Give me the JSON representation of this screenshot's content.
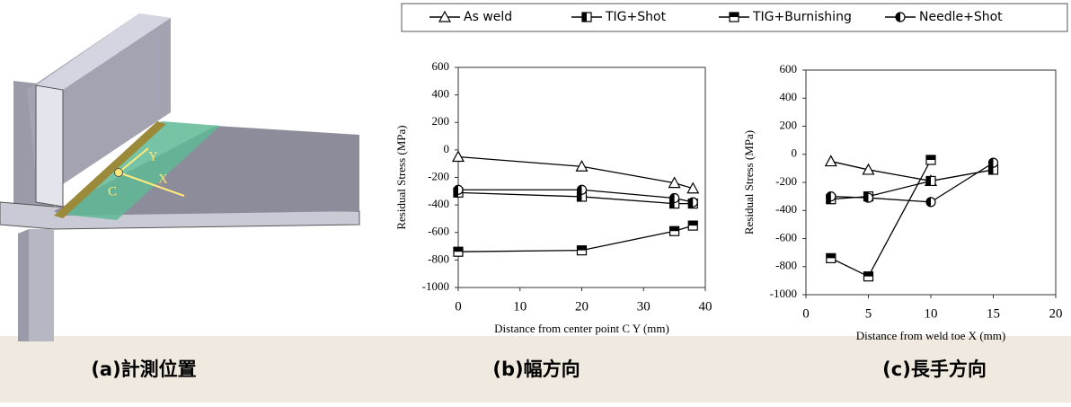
{
  "illustration": {
    "labels": [
      "Y",
      "X",
      "C"
    ]
  },
  "captions": [
    "(a)計測位置",
    "(b)幅方向",
    "(c)長手方向"
  ],
  "legend": [
    {
      "name": "As weld",
      "marker": "triangle",
      "color": "#000000"
    },
    {
      "name": "TIG+Shot",
      "marker": "square-left",
      "color": "#000000"
    },
    {
      "name": "TIG+Burnishing",
      "marker": "square-top",
      "color": "#000000"
    },
    {
      "name": "Needle+Shot",
      "marker": "circle-left",
      "color": "#000000"
    }
  ],
  "chart_data": [
    {
      "type": "line",
      "xlabel": "Distance from center point C   Y (mm)",
      "ylabel": "Residual Stress  (MPa)",
      "x": [
        0,
        20,
        35,
        38
      ],
      "xlim": [
        0,
        40
      ],
      "xticks": [
        0,
        10,
        20,
        30,
        40
      ],
      "ylim": [
        -1000,
        600
      ],
      "yticks": [
        -1000,
        -800,
        -600,
        -400,
        -200,
        0,
        200,
        400,
        600
      ],
      "series": [
        {
          "values": [
            -50,
            -120,
            -240,
            -280
          ]
        },
        {
          "values": [
            -310,
            -340,
            -390,
            -390
          ]
        },
        {
          "values": [
            -740,
            -730,
            -590,
            -550
          ]
        },
        {
          "values": [
            -290,
            -290,
            -350,
            -380
          ]
        }
      ]
    },
    {
      "type": "line",
      "xlabel": "Distance from weld toe    X (mm)",
      "ylabel": "Residual Stress  (MPa)",
      "x": [
        2,
        5,
        10,
        15
      ],
      "xlim": [
        0,
        20
      ],
      "xticks": [
        0,
        5,
        10,
        15,
        20
      ],
      "ylim": [
        -1000,
        600
      ],
      "yticks": [
        -1000,
        -800,
        -600,
        -400,
        -200,
        0,
        200,
        400,
        600
      ],
      "series": [
        {
          "values": [
            -50,
            -110,
            -190,
            null
          ]
        },
        {
          "values": [
            -320,
            -300,
            -190,
            -110
          ]
        },
        {
          "values": [
            -740,
            -870,
            -40,
            null
          ]
        },
        {
          "values": [
            -300,
            -310,
            -340,
            -60
          ]
        }
      ]
    }
  ]
}
